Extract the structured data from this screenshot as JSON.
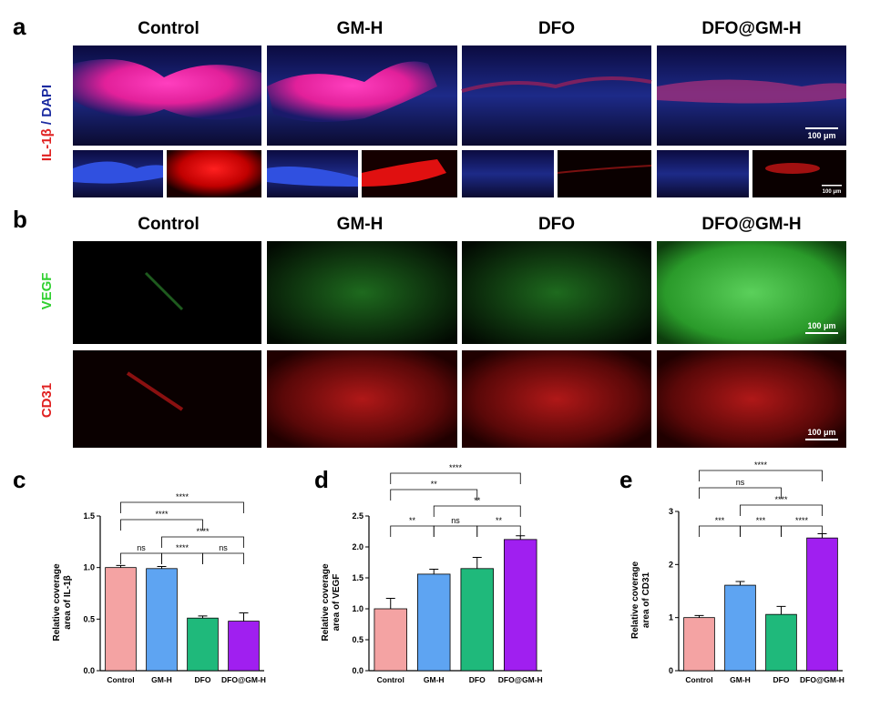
{
  "panels": {
    "a": "a",
    "b": "b",
    "c": "c",
    "d": "d",
    "e": "e"
  },
  "image_panels": {
    "a": {
      "columns": [
        "Control",
        "GM-H",
        "DFO",
        "DFO@GM-H"
      ],
      "stain": [
        "IL-1β",
        " / ",
        "DAPI"
      ],
      "scale_bar": "100 μm",
      "scale_bar_small": "100 μm"
    },
    "b": {
      "columns": [
        "Control",
        "GM-H",
        "DFO",
        "DFO@GM-H"
      ],
      "rows": [
        "VEGF",
        "CD31"
      ],
      "scale_bar": "100 μm"
    }
  },
  "chart_data": [
    {
      "type": "bar",
      "ylabel": [
        "Relative coverage",
        "area of IL-1β"
      ],
      "categories": [
        "Control",
        "GM-H",
        "DFO",
        "DFO@GM-H"
      ],
      "values": [
        1.0,
        0.99,
        0.51,
        0.48
      ],
      "errors": [
        0.02,
        0.02,
        0.02,
        0.08
      ],
      "colors": [
        "#f4a3a3",
        "#5ea4f2",
        "#1fb97b",
        "#a01ff0"
      ],
      "ylim": [
        0,
        1.5
      ],
      "yticks": [
        {
          "value": 0,
          "label": "0.0"
        },
        {
          "value": 0.5,
          "label": "0.5"
        },
        {
          "value": 1,
          "label": "1.0"
        },
        {
          "value": 1.5,
          "label": "1.5"
        }
      ],
      "significance": [
        "****",
        "****",
        "****",
        "****",
        "ns",
        "ns"
      ]
    },
    {
      "type": "bar",
      "ylabel": [
        "Relative coverage",
        "area of VEGF"
      ],
      "categories": [
        "Control",
        "GM-H",
        "DFO",
        "DFO@GM-H"
      ],
      "values": [
        1.0,
        1.56,
        1.65,
        2.12
      ],
      "errors": [
        0.17,
        0.08,
        0.18,
        0.06
      ],
      "colors": [
        "#f4a3a3",
        "#5ea4f2",
        "#1fb97b",
        "#a01ff0"
      ],
      "ylim": [
        0,
        2.5
      ],
      "yticks": [
        {
          "value": 0,
          "label": "0.0"
        },
        {
          "value": 0.5,
          "label": "0.5"
        },
        {
          "value": 1,
          "label": "1.0"
        },
        {
          "value": 1.5,
          "label": "1.5"
        },
        {
          "value": 2,
          "label": "2.0"
        },
        {
          "value": 2.5,
          "label": "2.5"
        }
      ],
      "significance": [
        "****",
        "**",
        "**",
        "**",
        "ns",
        "**"
      ]
    },
    {
      "type": "bar",
      "ylabel": [
        "Relative coverage",
        "area of CD31"
      ],
      "categories": [
        "Control",
        "GM-H",
        "DFO",
        "DFO@GM-H"
      ],
      "values": [
        1.0,
        1.61,
        1.06,
        2.5
      ],
      "errors": [
        0.04,
        0.07,
        0.15,
        0.08
      ],
      "colors": [
        "#f4a3a3",
        "#5ea4f2",
        "#1fb97b",
        "#a01ff0"
      ],
      "ylim": [
        0,
        3
      ],
      "yticks": [
        0,
        1,
        2,
        3
      ],
      "significance": [
        "****",
        "ns",
        "****",
        "***",
        "***",
        "****"
      ]
    }
  ]
}
